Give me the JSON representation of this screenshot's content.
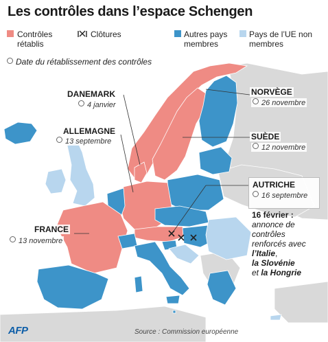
{
  "title": "Les contrôles dans l’espace Schengen",
  "legend": {
    "restored": "Contrôles rétablis",
    "fences": "Clôtures",
    "others": "Autres pays membres",
    "eu_non": "Pays de l’UE non membres",
    "date_note": "Date du rétablissement des contrôles"
  },
  "colors": {
    "restored": "#ef8b84",
    "other": "#3d94c9",
    "eu_non": "#b8d6ee",
    "outside": "#d9d9d9",
    "sea": "#ffffff"
  },
  "countries": {
    "danemark": {
      "name": "DANEMARK",
      "date": "4 janvier"
    },
    "allemagne": {
      "name": "ALLEMAGNE",
      "date": "13 septembre"
    },
    "france": {
      "name": "FRANCE",
      "date": "13 novembre"
    },
    "norvege": {
      "name": "NORVÈGE",
      "date": "26 novembre"
    },
    "suede": {
      "name": "SUÈDE",
      "date": "12 novembre"
    },
    "autriche": {
      "name": "AUTRICHE",
      "date": "16 septembre"
    }
  },
  "note": {
    "head": "16 février :",
    "body": "annonce de contrôles renforcés avec ",
    "italie": "l’Italie",
    "slovenie": "la Slovénie",
    "et": "et ",
    "hongrie": "la Hongrie"
  },
  "source": "Source : Commission européenne",
  "logo": "AFP"
}
